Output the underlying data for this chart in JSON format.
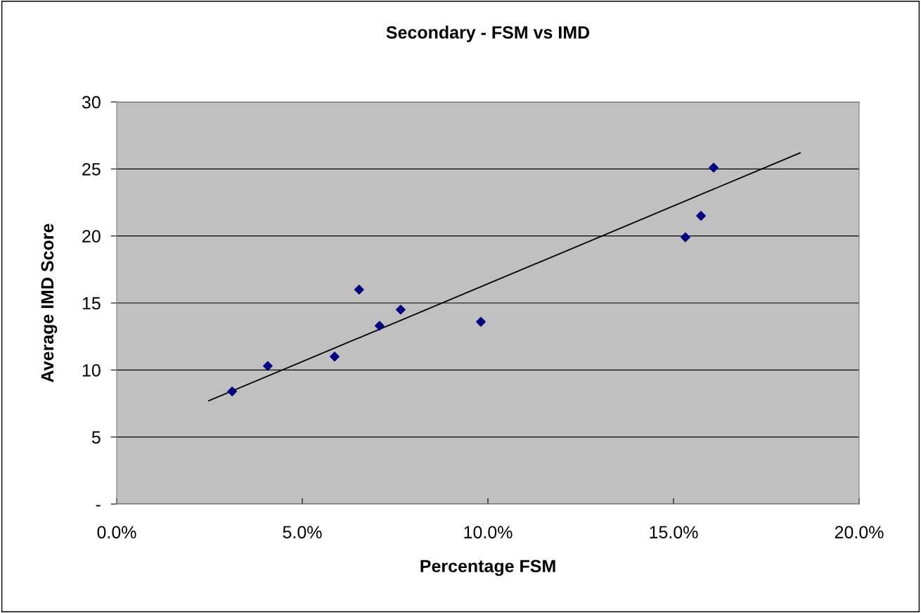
{
  "chart_data": {
    "type": "scatter",
    "title": "Secondary - FSM vs IMD",
    "xlabel": "Percentage FSM",
    "ylabel": "Average IMD Score",
    "series": [
      {
        "color": "#000080",
        "marker": "diamond",
        "x": [
          0.0311,
          0.0407,
          0.0587,
          0.0653,
          0.0708,
          0.0765,
          0.0981,
          0.1532,
          0.1574,
          0.1608
        ],
        "values": [
          8.4,
          10.3,
          11.0,
          16.0,
          13.3,
          14.5,
          13.6,
          19.9,
          21.5,
          25.1
        ]
      },
      {
        "type": "line",
        "color": "#000000",
        "marker": "none",
        "x": [
          0.0248,
          0.1841
        ],
        "values": [
          7.7,
          26.2
        ]
      }
    ],
    "xlim": [
      0,
      0.2
    ],
    "ylim": [
      0,
      30
    ],
    "xticks": [
      {
        "value": 0,
        "label": "0.0%"
      },
      {
        "value": 0.05,
        "label": "5.0%"
      },
      {
        "value": 0.1,
        "label": "10.0%"
      },
      {
        "value": 0.15,
        "label": "15.0%"
      },
      {
        "value": 0.2,
        "label": "20.0%"
      }
    ],
    "yticks": [
      {
        "value": 0,
        "label": "-"
      },
      5,
      10,
      15,
      20,
      25,
      30
    ],
    "grid": "y"
  }
}
